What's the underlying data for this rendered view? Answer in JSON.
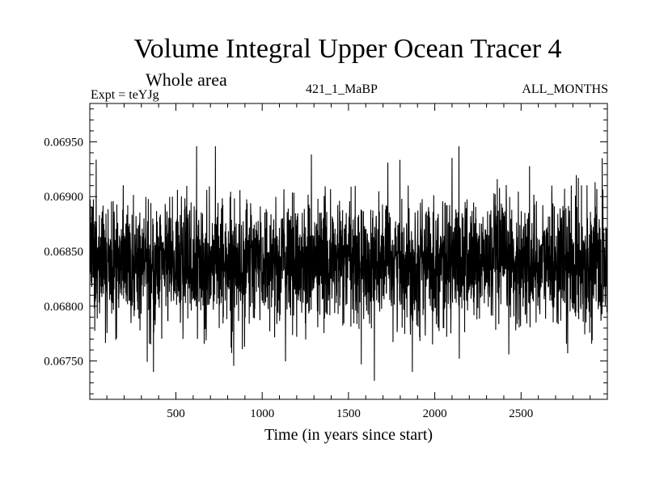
{
  "chart_data": {
    "type": "line",
    "title": "Volume Integral Upper Ocean Tracer 4",
    "subtitle": "Whole area",
    "annotations": {
      "experiment": "Expt = teYJg",
      "run": "421_1_MaBP",
      "months": "ALL_MONTHS"
    },
    "xlabel": "Time (in years since start)",
    "ylabel": "",
    "xlim": [
      1,
      3000
    ],
    "ylim": [
      0.06715,
      0.06985
    ],
    "x_ticks": [
      500,
      1000,
      1500,
      2000,
      2500
    ],
    "x_tick_labels": [
      "500",
      "1000",
      "1500",
      "2000",
      "2500"
    ],
    "y_ticks": [
      0.0675,
      0.068,
      0.0685,
      0.069,
      0.0695
    ],
    "y_tick_labels": [
      "0.06750",
      "0.06800",
      "0.06850",
      "0.06900",
      "0.06950"
    ],
    "grid": false,
    "series": [
      {
        "name": "Volume Integral Upper Ocean Tracer 4",
        "x_start": 1,
        "x_step": 1,
        "n_points": 3000,
        "mean": 0.0684,
        "std": 0.00028,
        "min": 0.06732,
        "max": 0.06948,
        "notable_points": [
          {
            "x": 370,
            "y": 0.0674
          },
          {
            "x": 620,
            "y": 0.06946
          },
          {
            "x": 1650,
            "y": 0.06732
          },
          {
            "x": 1870,
            "y": 0.0674
          },
          {
            "x": 2140,
            "y": 0.06946
          },
          {
            "x": 2770,
            "y": 0.06757
          },
          {
            "x": 2970,
            "y": 0.06935
          }
        ]
      }
    ]
  }
}
